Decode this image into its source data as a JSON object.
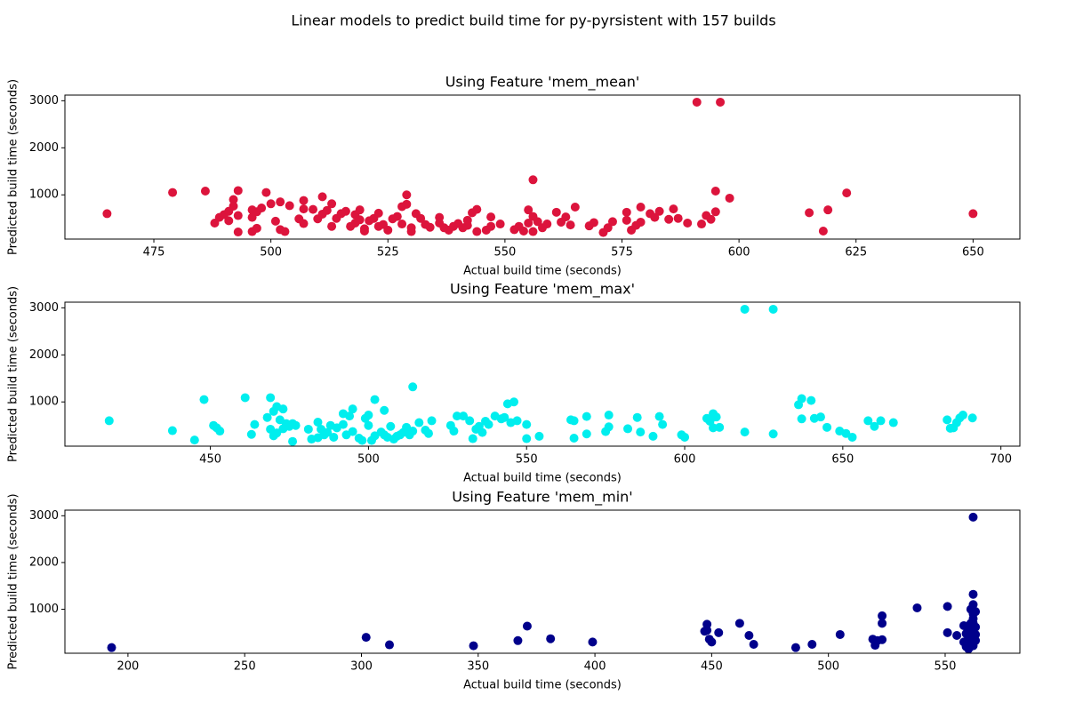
{
  "title": "Linear models to predict build time for py-pyrsistent with 157 builds",
  "chart_data": [
    {
      "type": "scatter",
      "title": "Using Feature 'mem_mean'",
      "xlabel": "Actual build time (seconds)",
      "ylabel": "Predicted build time (seconds)",
      "color": "#dc143c",
      "xlim": [
        456,
        660
      ],
      "ylim": [
        60,
        3120
      ],
      "xticks": [
        475,
        500,
        525,
        550,
        575,
        600,
        625,
        650
      ],
      "yticks": [
        1000,
        2000,
        3000
      ],
      "x": [
        465,
        479,
        486,
        488,
        489,
        490,
        491,
        491,
        492,
        492,
        493,
        493,
        493,
        496,
        496,
        496,
        497,
        497,
        498,
        499,
        500,
        501,
        502,
        502,
        503,
        504,
        506,
        507,
        507,
        507,
        509,
        510,
        511,
        511,
        512,
        513,
        513,
        514,
        515,
        516,
        517,
        518,
        518,
        519,
        519,
        520,
        520,
        521,
        522,
        523,
        523,
        524,
        525,
        526,
        527,
        528,
        528,
        529,
        529,
        530,
        530,
        531,
        532,
        533,
        534,
        536,
        536,
        537,
        538,
        539,
        540,
        541,
        542,
        542,
        543,
        544,
        544,
        546,
        547,
        547,
        549,
        552,
        553,
        554,
        555,
        555,
        556,
        556,
        556,
        557,
        558,
        559,
        561,
        562,
        563,
        564,
        565,
        568,
        569,
        571,
        572,
        573,
        576,
        576,
        577,
        578,
        579,
        579,
        581,
        582,
        583,
        585,
        586,
        587,
        589,
        591,
        592,
        593,
        594,
        595,
        595,
        596,
        598,
        615,
        618,
        619,
        623,
        650
      ],
      "values": [
        600,
        1050,
        1080,
        400,
        520,
        580,
        450,
        650,
        760,
        900,
        1090,
        560,
        210,
        220,
        520,
        680,
        640,
        290,
        720,
        1050,
        810,
        440,
        260,
        850,
        220,
        770,
        490,
        700,
        880,
        390,
        690,
        490,
        960,
        590,
        670,
        330,
        810,
        500,
        600,
        650,
        330,
        580,
        400,
        470,
        680,
        280,
        230,
        450,
        500,
        610,
        330,
        370,
        250,
        490,
        540,
        380,
        750,
        800,
        1000,
        300,
        220,
        600,
        500,
        370,
        310,
        520,
        400,
        300,
        250,
        330,
        390,
        300,
        350,
        460,
        620,
        690,
        220,
        250,
        330,
        530,
        380,
        260,
        330,
        230,
        680,
        400,
        220,
        1320,
        540,
        430,
        300,
        380,
        630,
        420,
        530,
        360,
        740,
        340,
        410,
        200,
        300,
        430,
        630,
        460,
        250,
        350,
        740,
        420,
        600,
        520,
        650,
        480,
        700,
        500,
        400,
        2970,
        380,
        560,
        480,
        1080,
        640,
        2970,
        930,
        620,
        230,
        680,
        1040,
        600
      ]
    },
    {
      "type": "scatter",
      "title": "Using Feature 'mem_max'",
      "xlabel": "Actual build time (seconds)",
      "ylabel": "Predicted build time (seconds)",
      "color": "#00eeee",
      "xlim": [
        404,
        706
      ],
      "ylim": [
        60,
        3120
      ],
      "xticks": [
        450,
        500,
        550,
        600,
        650,
        700
      ],
      "yticks": [
        1000,
        2000,
        3000
      ],
      "x": [
        418,
        438,
        445,
        448,
        451,
        452,
        453,
        461,
        463,
        464,
        468,
        469,
        469,
        470,
        470,
        471,
        471,
        472,
        473,
        473,
        474,
        475,
        476,
        476,
        477,
        481,
        482,
        484,
        484,
        485,
        486,
        487,
        488,
        489,
        490,
        492,
        492,
        493,
        494,
        495,
        495,
        497,
        498,
        499,
        500,
        500,
        501,
        502,
        502,
        504,
        505,
        505,
        506,
        507,
        508,
        509,
        510,
        511,
        512,
        513,
        514,
        514,
        516,
        518,
        519,
        520,
        526,
        527,
        528,
        530,
        532,
        533,
        534,
        535,
        536,
        537,
        538,
        540,
        542,
        543,
        544,
        545,
        546,
        547,
        550,
        550,
        554,
        564,
        565,
        565,
        569,
        569,
        575,
        576,
        576,
        582,
        585,
        586,
        590,
        592,
        593,
        599,
        600,
        607,
        608,
        609,
        609,
        610,
        611,
        619,
        619,
        628,
        628,
        636,
        637,
        637,
        640,
        641,
        643,
        645,
        649,
        651,
        653,
        658,
        660,
        662,
        666,
        683,
        684,
        685,
        686,
        687,
        688,
        691
      ],
      "values": [
        600,
        390,
        190,
        1050,
        500,
        450,
        380,
        1090,
        310,
        520,
        670,
        1090,
        420,
        800,
        280,
        900,
        340,
        620,
        850,
        430,
        540,
        480,
        160,
        540,
        500,
        420,
        210,
        570,
        240,
        420,
        300,
        350,
        500,
        250,
        450,
        750,
        520,
        300,
        700,
        850,
        370,
        230,
        180,
        650,
        500,
        720,
        180,
        1050,
        280,
        360,
        820,
        300,
        250,
        480,
        210,
        270,
        300,
        350,
        460,
        300,
        1320,
        380,
        560,
        400,
        330,
        600,
        500,
        380,
        700,
        700,
        600,
        220,
        420,
        480,
        350,
        590,
        520,
        700,
        640,
        670,
        960,
        560,
        1000,
        600,
        520,
        220,
        270,
        620,
        600,
        230,
        320,
        690,
        370,
        470,
        720,
        430,
        670,
        360,
        270,
        690,
        520,
        300,
        250,
        650,
        590,
        750,
        450,
        680,
        460,
        360,
        2970,
        320,
        2970,
        940,
        1070,
        640,
        1030,
        650,
        680,
        460,
        380,
        330,
        250,
        600,
        480,
        600,
        560,
        620,
        440,
        450,
        560,
        660,
        720,
        660
      ]
    },
    {
      "type": "scatter",
      "title": "Using Feature 'mem_min'",
      "xlabel": "Actual build time (seconds)",
      "ylabel": "Predicted build time (seconds)",
      "color": "#00008b",
      "xlim": [
        173,
        582
      ],
      "ylim": [
        60,
        3120
      ],
      "xticks": [
        200,
        250,
        300,
        350,
        400,
        450,
        500,
        550
      ],
      "yticks": [
        1000,
        2000,
        3000
      ],
      "x": [
        193,
        302,
        312,
        348,
        367,
        371,
        381,
        399,
        447,
        448,
        448,
        449,
        450,
        453,
        462,
        466,
        468,
        486,
        493,
        505,
        519,
        520,
        521,
        523,
        523,
        523,
        538,
        551,
        551,
        555,
        558,
        558,
        559,
        559,
        560,
        560,
        560,
        561,
        561,
        561,
        562,
        562,
        562,
        562,
        562,
        562,
        562,
        562,
        562,
        562,
        562,
        562,
        563,
        563,
        563,
        563,
        560,
        561
      ],
      "values": [
        180,
        400,
        240,
        220,
        330,
        640,
        370,
        300,
        530,
        680,
        550,
        360,
        300,
        500,
        700,
        440,
        250,
        180,
        250,
        460,
        360,
        230,
        330,
        860,
        700,
        350,
        1030,
        1060,
        500,
        440,
        650,
        300,
        480,
        200,
        150,
        380,
        560,
        700,
        260,
        1000,
        2970,
        1320,
        1100,
        900,
        800,
        700,
        600,
        500,
        420,
        350,
        280,
        220,
        620,
        460,
        330,
        950,
        300,
        450
      ]
    }
  ]
}
